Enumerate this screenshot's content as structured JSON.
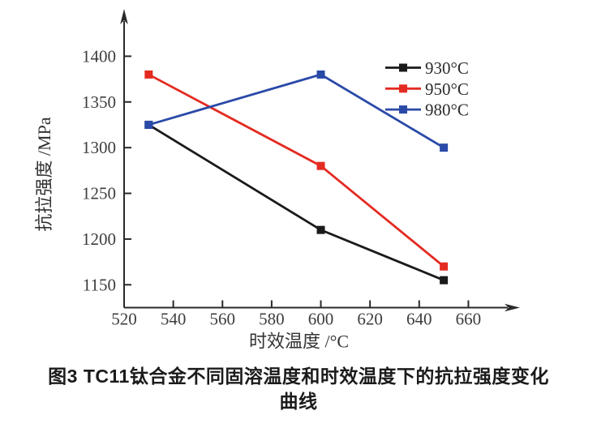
{
  "chart_data": {
    "type": "line",
    "title": "",
    "xlabel": "时效温度 /°C",
    "ylabel": "抗拉强度 /MPa",
    "x": [
      530,
      600,
      650
    ],
    "series": [
      {
        "name": "930°C",
        "color": "#1a1a1a",
        "values": [
          1325,
          1210,
          1155
        ]
      },
      {
        "name": "950°C",
        "color": "#e42b22",
        "values": [
          1380,
          1280,
          1170
        ]
      },
      {
        "name": "980°C",
        "color": "#2a4aa8",
        "values": [
          1325,
          1380,
          1300
        ]
      }
    ],
    "x_origin_label": "520",
    "x_ticks": [
      540,
      560,
      580,
      600,
      620,
      640,
      660
    ],
    "y_ticks": [
      1150,
      1200,
      1250,
      1300,
      1350,
      1400
    ],
    "xlim": [
      520,
      678
    ],
    "ylim": [
      1125,
      1450
    ],
    "marker": "square",
    "grid": false,
    "legend_position": "upper-right",
    "axis_color": "#2a2a2a",
    "tick_label_color": "#3d3d3d",
    "axis_title_color": "#333333"
  },
  "caption": {
    "line1": "图3  TC11钛合金不同固溶温度和时效温度下的抗拉强度变化",
    "line2": "曲线"
  }
}
